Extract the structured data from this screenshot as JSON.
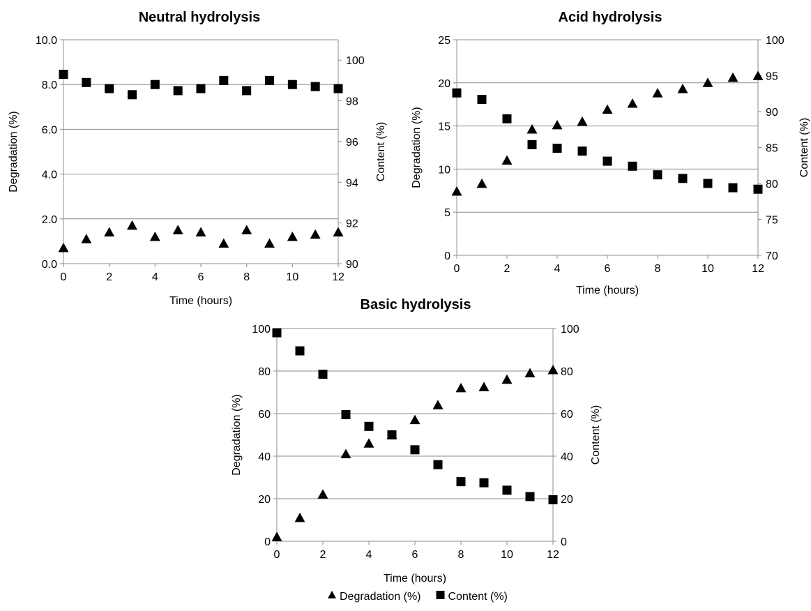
{
  "chart_data": [
    {
      "type": "scatter",
      "title": "Neutral hydrolysis",
      "xlabel": "Time (hours)",
      "ylabel": "Degradation (%)",
      "y2label": "Content (%)",
      "x": [
        0,
        1,
        2,
        3,
        4,
        5,
        6,
        7,
        8,
        9,
        10,
        11,
        12
      ],
      "xlim": [
        0,
        12
      ],
      "xticks": [
        "0",
        "2",
        "4",
        "6",
        "8",
        "10",
        "12"
      ],
      "ylim": [
        0,
        10
      ],
      "yticks": [
        "0.0",
        "2.0",
        "4.0",
        "6.0",
        "8.0",
        "10.0"
      ],
      "y2lim": [
        90,
        101
      ],
      "y2ticks": [
        "90",
        "92",
        "94",
        "96",
        "98",
        "100"
      ],
      "grid": true,
      "series": [
        {
          "name": "Degradation (%)",
          "axis": "left",
          "marker": "triangle",
          "values": [
            0.7,
            1.1,
            1.4,
            1.7,
            1.2,
            1.5,
            1.4,
            0.9,
            1.5,
            0.9,
            1.2,
            1.3,
            1.4
          ]
        },
        {
          "name": "Content (%)",
          "axis": "right",
          "marker": "square",
          "values": [
            99.3,
            98.9,
            98.6,
            98.3,
            98.8,
            98.5,
            98.6,
            99.0,
            98.5,
            99.0,
            98.8,
            98.7,
            98.6
          ]
        }
      ]
    },
    {
      "type": "scatter",
      "title": "Acid hydrolysis",
      "xlabel": "Time (hours)",
      "ylabel": "Degradation (%)",
      "y2label": "Content (%)",
      "x": [
        0,
        1,
        2,
        3,
        4,
        5,
        6,
        7,
        8,
        9,
        10,
        11,
        12
      ],
      "xlim": [
        0,
        12
      ],
      "xticks": [
        "0",
        "2",
        "4",
        "6",
        "8",
        "10",
        "12"
      ],
      "ylim": [
        0,
        25
      ],
      "yticks": [
        "0",
        "5",
        "10",
        "15",
        "20",
        "25"
      ],
      "y2lim": [
        70,
        100
      ],
      "y2ticks": [
        "70",
        "75",
        "80",
        "85",
        "90",
        "95",
        "100"
      ],
      "grid": true,
      "series": [
        {
          "name": "Degradation (%)",
          "axis": "left",
          "marker": "triangle",
          "values": [
            7.4,
            8.3,
            11.0,
            14.6,
            15.1,
            15.5,
            16.9,
            17.6,
            18.8,
            19.3,
            20.0,
            20.6,
            20.8
          ]
        },
        {
          "name": "Content (%)",
          "axis": "right",
          "marker": "square",
          "values": [
            92.6,
            91.7,
            89.0,
            85.4,
            84.9,
            84.5,
            83.1,
            82.4,
            81.2,
            80.7,
            80.0,
            79.4,
            79.2
          ]
        }
      ]
    },
    {
      "type": "scatter",
      "title": "Basic hydrolysis",
      "xlabel": "Time (hours)",
      "ylabel": "Degradation (%)",
      "y2label": "Content (%)",
      "x": [
        0,
        1,
        2,
        3,
        4,
        5,
        6,
        7,
        8,
        9,
        10,
        11,
        12
      ],
      "xlim": [
        0,
        12
      ],
      "xticks": [
        "0",
        "2",
        "4",
        "6",
        "8",
        "10",
        "12"
      ],
      "ylim": [
        0,
        100
      ],
      "yticks": [
        "0",
        "20",
        "40",
        "60",
        "80",
        "100"
      ],
      "y2lim": [
        0,
        100
      ],
      "y2ticks": [
        "0",
        "20",
        "40",
        "60",
        "80",
        "100"
      ],
      "grid": true,
      "series": [
        {
          "name": "Degradation (%)",
          "axis": "left",
          "marker": "triangle",
          "values": [
            2,
            11,
            22,
            41,
            46,
            50,
            57,
            64,
            72,
            72.5,
            76,
            79,
            80.5
          ]
        },
        {
          "name": "Content (%)",
          "axis": "right",
          "marker": "square",
          "values": [
            98,
            89.5,
            78.5,
            59.5,
            54,
            50,
            43,
            36,
            28,
            27.5,
            24,
            21,
            19.5
          ]
        }
      ]
    }
  ],
  "legend": {
    "position": "bottom-center",
    "entries": [
      {
        "label": "Degradation (%)",
        "marker": "triangle"
      },
      {
        "label": "Content (%)",
        "marker": "square"
      }
    ]
  }
}
